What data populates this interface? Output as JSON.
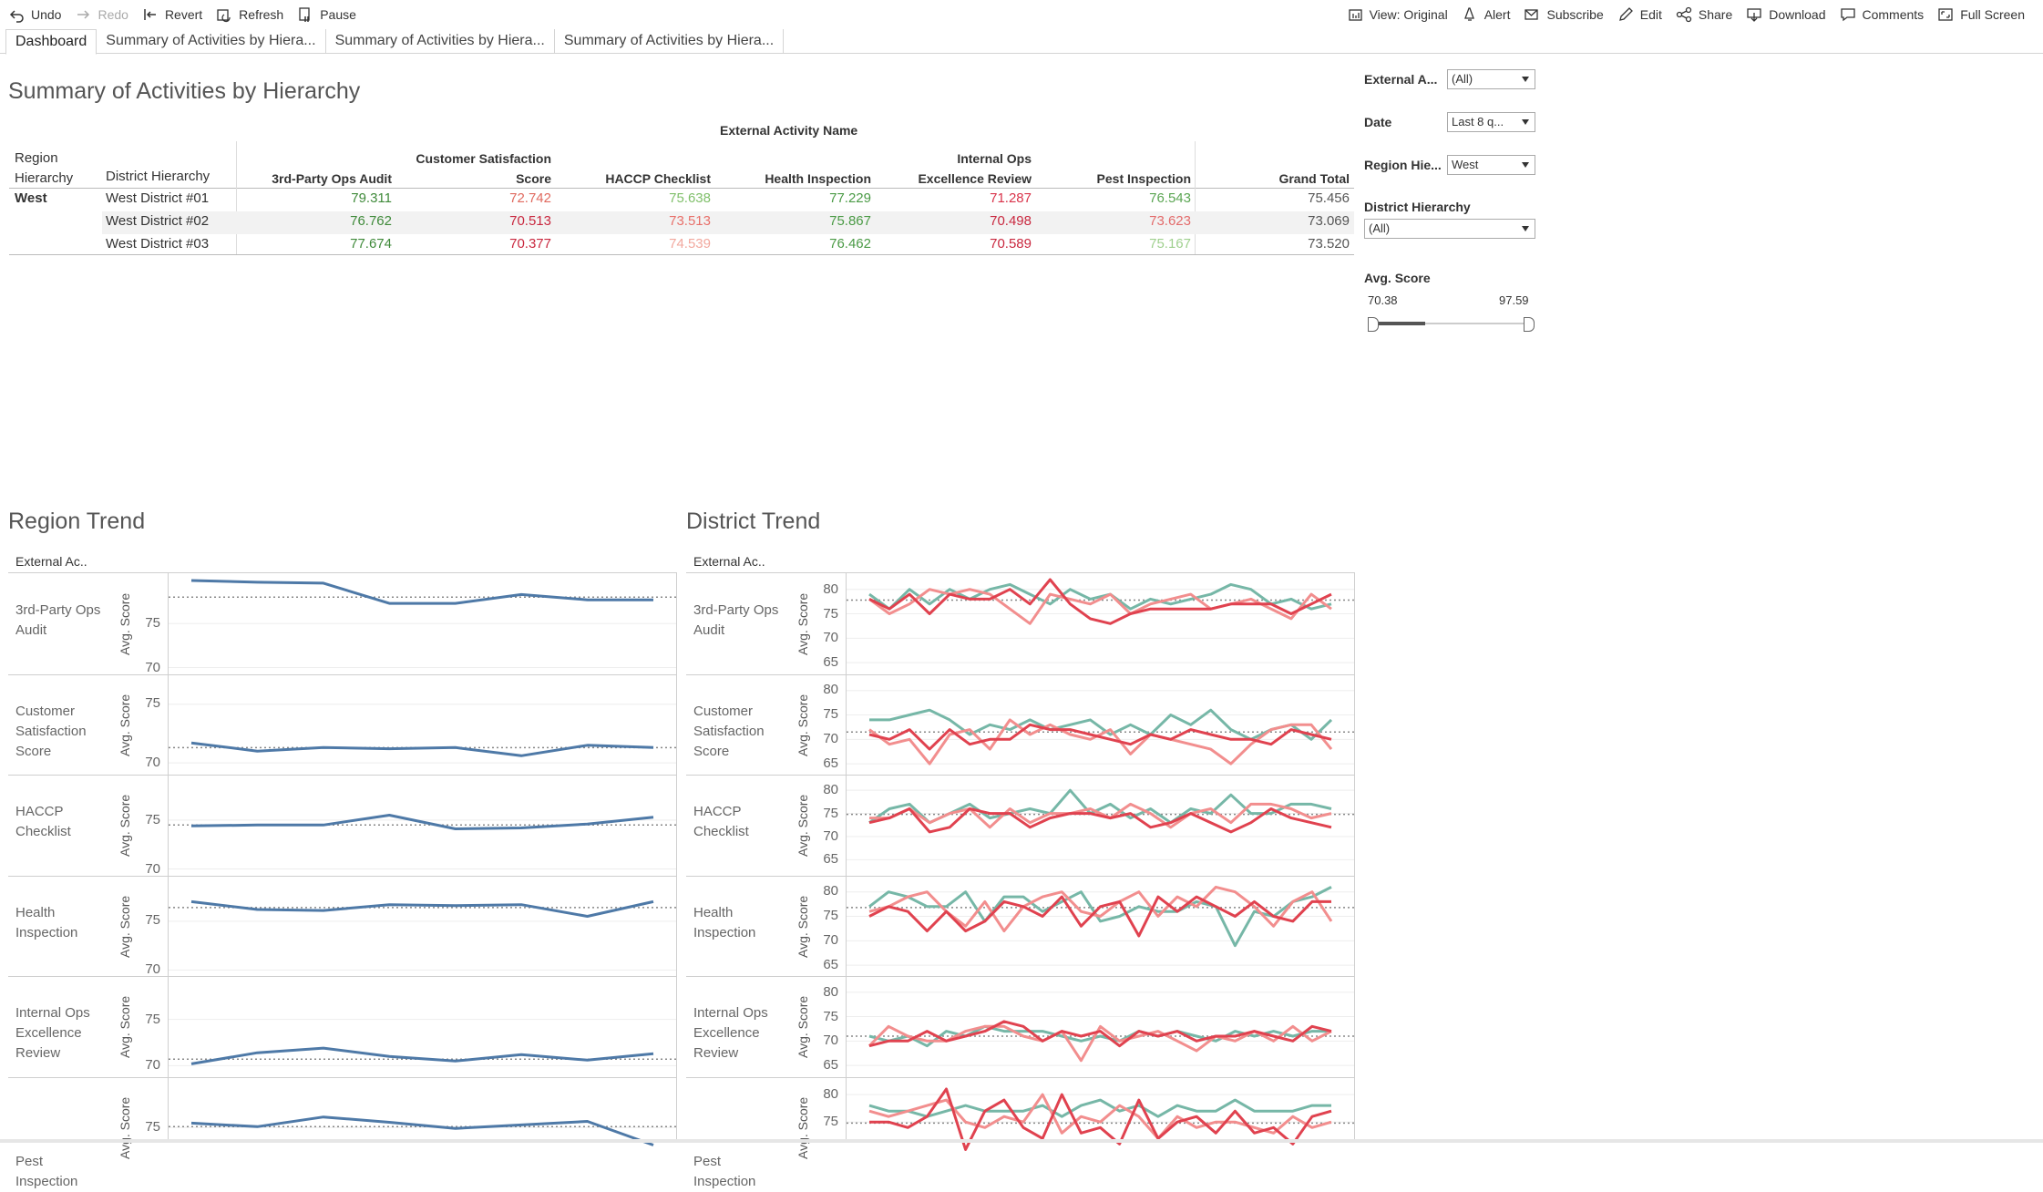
{
  "toolbar": {
    "left": [
      {
        "label": "Undo",
        "icon": "undo-icon",
        "disabled": false
      },
      {
        "label": "Redo",
        "icon": "redo-icon",
        "disabled": true
      },
      {
        "label": "Revert",
        "icon": "revert-icon",
        "disabled": false
      },
      {
        "label": "Refresh",
        "icon": "refresh-icon",
        "disabled": false
      },
      {
        "label": "Pause",
        "icon": "pause-icon",
        "disabled": false
      }
    ],
    "right": [
      {
        "label": "View: Original",
        "icon": "view-icon"
      },
      {
        "label": "Alert",
        "icon": "bell-icon"
      },
      {
        "label": "Subscribe",
        "icon": "envelope-icon"
      },
      {
        "label": "Edit",
        "icon": "pencil-icon"
      },
      {
        "label": "Share",
        "icon": "share-icon"
      },
      {
        "label": "Download",
        "icon": "download-icon"
      },
      {
        "label": "Comments",
        "icon": "comment-icon"
      },
      {
        "label": "Full Screen",
        "icon": "fullscreen-icon"
      }
    ]
  },
  "tabs": [
    "Dashboard",
    "Summary of Activities by Hiera...",
    "Summary of Activities by Hiera...",
    "Summary of Activities by Hiera..."
  ],
  "summary": {
    "title": "Summary of Activities by Hierarchy",
    "column_group": "External Activity Name",
    "row_headers": [
      "Region Hierarchy",
      "District Hierarchy"
    ],
    "columns": [
      "3rd-Party Ops Audit",
      "Customer Satisfaction Score",
      "HACCP Checklist",
      "Health Inspection",
      "Internal Ops Excellence Review",
      "Pest Inspection",
      "Grand Total"
    ],
    "region": "West",
    "rows": [
      {
        "district": "West District #01",
        "values": [
          "79.311",
          "72.742",
          "75.638",
          "77.229",
          "71.287",
          "76.543",
          "75.456"
        ]
      },
      {
        "district": "West District #02",
        "values": [
          "76.762",
          "70.513",
          "73.513",
          "75.867",
          "70.498",
          "73.623",
          "73.069"
        ]
      },
      {
        "district": "West District #03",
        "values": [
          "77.674",
          "70.377",
          "74.539",
          "76.462",
          "70.589",
          "75.167",
          "73.520"
        ]
      }
    ],
    "value_colors": [
      [
        "#3f8a3a",
        "#e06a5f",
        "#7fbf6a",
        "#4a9a45",
        "#d9334a",
        "#5aa552",
        "#555555"
      ],
      [
        "#3f8a3a",
        "#c9283f",
        "#e8706a",
        "#4a9a45",
        "#c9283f",
        "#e36b6b",
        "#555555"
      ],
      [
        "#3f8a3a",
        "#c9283f",
        "#f2a89e",
        "#4a9a45",
        "#c9283f",
        "#9fd08e",
        "#555555"
      ]
    ]
  },
  "filters": {
    "external_activity": {
      "label": "External A...",
      "value": "(All)"
    },
    "date": {
      "label": "Date",
      "value": "Last 8 q..."
    },
    "region": {
      "label": "Region Hie...",
      "value": "West"
    },
    "district": {
      "label": "District Hierarchy",
      "value": "(All)"
    },
    "avg_score": {
      "label": "Avg. Score",
      "min": "70.38",
      "max": "97.59"
    }
  },
  "region_trend": {
    "title": "Region Trend",
    "header": "External Ac..",
    "axis_title": "Avg. Score",
    "color": "#4e79a7",
    "rows": [
      {
        "label": "3rd-Party Ops Audit",
        "ticks": [
          "75",
          "70"
        ],
        "ymin": 70,
        "ymax": 80,
        "ref": 78.0,
        "values": [
          79.9,
          79.7,
          79.6,
          77.3,
          77.3,
          78.3,
          77.7,
          77.7
        ]
      },
      {
        "label": "Customer Satisfaction Score",
        "ticks": [
          "75",
          "70"
        ],
        "ymin": 69.5,
        "ymax": 77,
        "ref": 71.3,
        "values": [
          71.7,
          71.0,
          71.3,
          71.2,
          71.3,
          70.6,
          71.5,
          71.3
        ]
      },
      {
        "label": "HACCP Checklist",
        "ticks": [
          "75",
          "70"
        ],
        "ymin": 70,
        "ymax": 79,
        "ref": 74.5,
        "values": [
          74.4,
          74.5,
          74.5,
          75.5,
          74.1,
          74.2,
          74.6,
          75.3
        ]
      },
      {
        "label": "Health Inspection",
        "ticks": [
          "75",
          "70"
        ],
        "ymin": 70,
        "ymax": 79,
        "ref": 76.4,
        "values": [
          77.0,
          76.2,
          76.1,
          76.7,
          76.6,
          76.7,
          75.5,
          77.0
        ]
      },
      {
        "label": "Internal Ops Excellence Review",
        "ticks": [
          "75",
          "70"
        ],
        "ymin": 69.5,
        "ymax": 79,
        "ref": 70.7,
        "values": [
          70.2,
          71.4,
          71.9,
          71.0,
          70.5,
          71.2,
          70.6,
          71.3
        ]
      },
      {
        "label": "Pest Inspection",
        "ticks": [
          "75"
        ],
        "ymin": 70,
        "ymax": 80,
        "ref": 75.1,
        "values": [
          75.5,
          75.1,
          76.2,
          75.6,
          74.9,
          75.3,
          75.7,
          73.0
        ]
      }
    ]
  },
  "district_trend": {
    "title": "District Trend",
    "header": "External Ac..",
    "axis_title": "Avg. Score",
    "colors": [
      "#76b7a7",
      "#f28e8e",
      "#e0424f"
    ],
    "rows": [
      {
        "label": "3rd-Party Ops Audit",
        "ticks": [
          "80",
          "75",
          "70",
          "65"
        ],
        "ymin": 64,
        "ymax": 82,
        "ref": 77.8,
        "series": [
          [
            79,
            76,
            80,
            77,
            80,
            78,
            80,
            81,
            79,
            77,
            80,
            78,
            79,
            76,
            78,
            77,
            78,
            79,
            81,
            80,
            77,
            78,
            76,
            77
          ],
          [
            78,
            75,
            77,
            80,
            79,
            80,
            79,
            76,
            73,
            79,
            78,
            77,
            79,
            75,
            77,
            78,
            79,
            76,
            77,
            78,
            76,
            74,
            79,
            76
          ],
          [
            78,
            76,
            79,
            75,
            79,
            78,
            78,
            80,
            77,
            82,
            77,
            74,
            73,
            75,
            76,
            76,
            76,
            76,
            77,
            77,
            77,
            75,
            77,
            79
          ]
        ]
      },
      {
        "label": "Customer Satisfaction Score",
        "ticks": [
          "80",
          "75",
          "70",
          "65"
        ],
        "ymin": 64,
        "ymax": 82,
        "ref": 71.5,
        "series": [
          [
            74,
            74,
            75,
            76,
            74,
            71,
            73,
            72,
            74,
            72,
            73,
            74,
            71,
            73,
            71,
            75,
            73,
            76,
            72,
            70,
            72,
            73,
            70,
            74
          ],
          [
            72,
            69,
            70,
            65,
            71,
            72,
            68,
            74,
            71,
            73,
            71,
            70,
            72,
            67,
            71,
            70,
            69,
            68,
            65,
            69,
            72,
            73,
            73,
            68
          ],
          [
            71,
            70,
            72,
            68,
            72,
            69,
            70,
            70,
            73,
            72,
            72,
            71,
            70,
            69,
            71,
            70,
            72,
            71,
            70,
            70,
            69,
            72,
            71,
            70
          ]
        ]
      },
      {
        "label": "HACCP Checklist",
        "ticks": [
          "80",
          "75",
          "70",
          "65"
        ],
        "ymin": 63,
        "ymax": 82,
        "ref": 74.8,
        "series": [
          [
            73,
            76,
            77,
            73,
            75,
            77,
            74,
            75,
            76,
            75,
            80,
            75,
            77,
            74,
            76,
            73,
            76,
            75,
            79,
            75,
            75,
            77,
            77,
            76
          ],
          [
            74,
            74,
            76,
            73,
            75,
            76,
            72,
            76,
            73,
            75,
            75,
            76,
            74,
            77,
            75,
            72,
            75,
            76,
            73,
            77,
            77,
            76,
            74,
            75
          ],
          [
            73,
            74,
            76,
            71,
            72,
            76,
            75,
            75,
            72,
            74,
            75,
            75,
            74,
            75,
            72,
            73,
            75,
            73,
            71,
            73,
            76,
            74,
            73,
            72
          ]
        ]
      },
      {
        "label": "Health Inspection",
        "ticks": [
          "80",
          "75",
          "70",
          "65"
        ],
        "ymin": 64,
        "ymax": 82,
        "ref": 76.8,
        "series": [
          [
            77,
            80,
            79,
            77,
            77,
            80,
            74,
            79,
            79,
            76,
            78,
            80,
            74,
            75,
            77,
            76,
            76,
            78,
            77,
            69,
            76,
            75,
            78,
            79,
            81
          ],
          [
            76,
            77,
            79,
            80,
            76,
            73,
            78,
            72,
            77,
            79,
            80,
            76,
            75,
            78,
            80,
            75,
            79,
            77,
            81,
            80,
            77,
            73,
            78,
            80,
            74
          ],
          [
            75,
            77,
            76,
            72,
            76,
            72,
            74,
            78,
            77,
            75,
            79,
            73,
            77,
            78,
            71,
            79,
            76,
            79,
            77,
            75,
            78,
            75,
            74,
            78,
            78
          ]
        ]
      },
      {
        "label": "Internal Ops Excellence Review",
        "ticks": [
          "80",
          "75",
          "70",
          "65"
        ],
        "ymin": 64,
        "ymax": 82,
        "ref": 71.0,
        "series": [
          [
            71,
            70,
            71,
            69,
            72,
            71,
            73,
            72,
            72,
            72,
            71,
            70,
            71,
            70,
            72,
            71,
            72,
            71,
            70,
            72,
            71,
            72,
            71,
            72,
            72
          ],
          [
            69,
            73,
            71,
            70,
            70,
            72,
            73,
            73,
            71,
            70,
            72,
            66,
            73,
            70,
            71,
            72,
            70,
            68,
            71,
            70,
            72,
            70,
            73,
            70,
            72
          ],
          [
            69,
            70,
            70,
            72,
            70,
            71,
            72,
            74,
            73,
            70,
            72,
            71,
            72,
            69,
            72,
            71,
            72,
            70,
            71,
            71,
            72,
            71,
            70,
            73,
            72
          ]
        ]
      },
      {
        "label": "Pest Inspection",
        "ticks": [
          "80",
          "75"
        ],
        "ymin": 66,
        "ymax": 82,
        "ref": 74.8,
        "series": [
          [
            78,
            77,
            77,
            76,
            77,
            78,
            77,
            77,
            77,
            78,
            76,
            78,
            79,
            77,
            78,
            76,
            78,
            77,
            77,
            79,
            77,
            77,
            77,
            78,
            78
          ],
          [
            77,
            76,
            77,
            78,
            79,
            75,
            74,
            76,
            75,
            80,
            73,
            76,
            75,
            78,
            76,
            72,
            76,
            74,
            75,
            75,
            74,
            73,
            76,
            74,
            75
          ],
          [
            75,
            75,
            74,
            76,
            81,
            70,
            77,
            79,
            74,
            72,
            80,
            73,
            74,
            71,
            79,
            72,
            75,
            76,
            73,
            77,
            73,
            74,
            71,
            76,
            77
          ]
        ]
      }
    ]
  }
}
